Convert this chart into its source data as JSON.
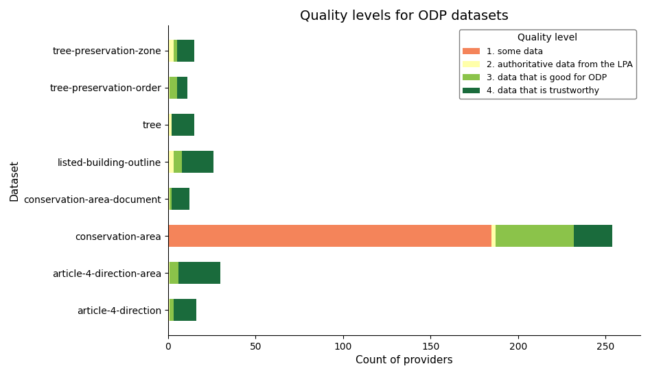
{
  "datasets": [
    "article-4-direction",
    "article-4-direction-area",
    "conservation-area",
    "conservation-area-document",
    "listed-building-outline",
    "tree",
    "tree-preservation-order",
    "tree-preservation-zone"
  ],
  "quality_levels": [
    "1. some data",
    "2. authoritative data from the LPA",
    "3. data that is good for ODP",
    "4. data that is trustworthy"
  ],
  "colors": [
    "#f4845a",
    "#ffffaa",
    "#8bc34a",
    "#1a6b3c"
  ],
  "values": {
    "article-4-direction": [
      0,
      1,
      2,
      13
    ],
    "article-4-direction-area": [
      0,
      1,
      5,
      24
    ],
    "conservation-area": [
      185,
      2,
      45,
      22
    ],
    "conservation-area-document": [
      0,
      1,
      1,
      10
    ],
    "listed-building-outline": [
      0,
      3,
      5,
      18
    ],
    "tree": [
      0,
      2,
      0,
      13
    ],
    "tree-preservation-order": [
      0,
      1,
      4,
      6
    ],
    "tree-preservation-zone": [
      0,
      3,
      2,
      10
    ]
  },
  "title": "Quality levels for ODP datasets",
  "xlabel": "Count of providers",
  "ylabel": "Dataset",
  "xlim": [
    0,
    270
  ],
  "bar_height": 0.6,
  "figsize": [
    9.47,
    5.47
  ],
  "dpi": 100
}
